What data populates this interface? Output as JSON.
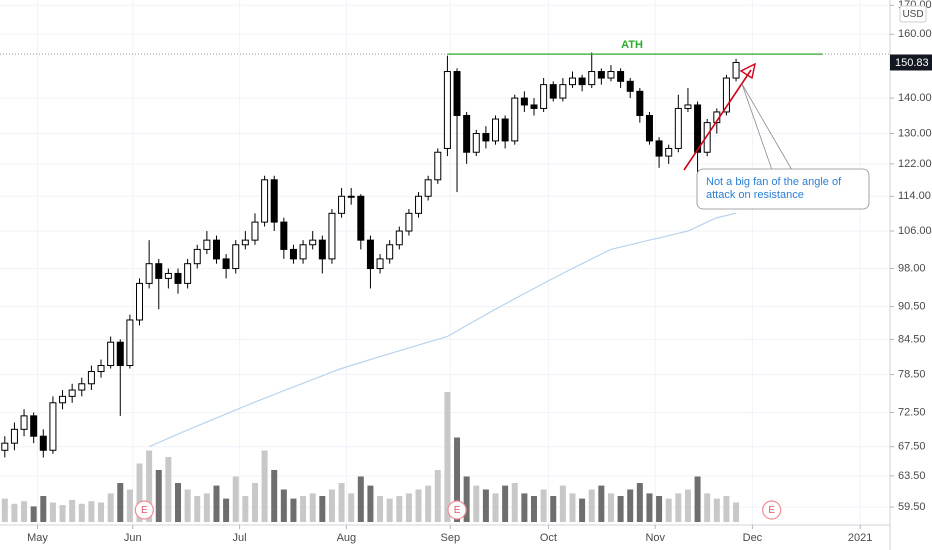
{
  "chart_data": {
    "type": "candlestick",
    "currency": "USD",
    "log": true,
    "grid": true,
    "ylim": [
      57.3,
      171.9
    ],
    "yticks": [
      {
        "value": 59.5,
        "label": "59.50"
      },
      {
        "value": 63.5,
        "label": "63.50"
      },
      {
        "value": 67.5,
        "label": "67.50"
      },
      {
        "value": 72.5,
        "label": "72.50"
      },
      {
        "value": 78.5,
        "label": "78.50"
      },
      {
        "value": 84.5,
        "label": "84.50"
      },
      {
        "value": 90.5,
        "label": "90.50"
      },
      {
        "value": 98,
        "label": "98.00"
      },
      {
        "value": 106,
        "label": "106.00"
      },
      {
        "value": 114,
        "label": "114.00"
      },
      {
        "value": 122,
        "label": "122.00"
      },
      {
        "value": 130,
        "label": "130.00"
      },
      {
        "value": 140,
        "label": "140.00"
      },
      {
        "value": 160,
        "label": "160.00"
      },
      {
        "value": 170,
        "label": "170.00"
      }
    ],
    "xlim": [
      -0.5,
      92
    ],
    "xticks": [
      {
        "value": 3.4,
        "label": "May"
      },
      {
        "value": 13.3,
        "label": "Jun"
      },
      {
        "value": 24.4,
        "label": "Jul"
      },
      {
        "value": 35.5,
        "label": "Aug"
      },
      {
        "value": 46.3,
        "label": "Sep"
      },
      {
        "value": 56.5,
        "label": "Oct"
      },
      {
        "value": 67.6,
        "label": "Nov"
      },
      {
        "value": 77.7,
        "label": "Dec"
      },
      {
        "value": 88.9,
        "label": "2021"
      }
    ],
    "up_color": "#ffffff",
    "down_color": "#000000",
    "candles": [
      [
        67,
        69,
        66,
        68
      ],
      [
        68,
        71,
        67,
        70
      ],
      [
        70,
        73,
        69,
        72
      ],
      [
        72,
        72.5,
        68,
        69
      ],
      [
        69,
        70,
        66,
        67
      ],
      [
        67,
        75,
        66.5,
        74
      ],
      [
        74,
        76,
        73,
        75
      ],
      [
        75,
        77,
        74,
        76
      ],
      [
        76,
        78,
        75,
        77
      ],
      [
        77,
        80,
        76,
        79
      ],
      [
        79,
        81,
        78,
        80
      ],
      [
        80,
        85,
        79.5,
        84
      ],
      [
        84,
        84.5,
        72,
        80
      ],
      [
        80,
        89,
        79.5,
        88
      ],
      [
        88,
        96,
        87,
        95
      ],
      [
        95,
        104,
        94,
        99
      ],
      [
        99,
        100,
        90,
        96
      ],
      [
        96,
        98,
        94,
        97
      ],
      [
        97,
        98,
        93,
        95
      ],
      [
        95,
        100,
        94,
        99
      ],
      [
        99,
        103,
        98,
        102
      ],
      [
        102,
        106,
        101,
        104
      ],
      [
        104,
        105,
        99,
        100
      ],
      [
        100,
        101,
        96,
        98
      ],
      [
        98,
        104,
        97,
        103
      ],
      [
        103,
        106,
        102,
        104
      ],
      [
        104,
        110,
        103,
        108
      ],
      [
        108,
        119,
        107,
        118
      ],
      [
        118,
        119,
        106,
        108
      ],
      [
        108,
        109,
        100,
        102
      ],
      [
        102,
        103,
        99,
        100
      ],
      [
        100,
        104,
        99,
        103
      ],
      [
        103,
        106,
        102,
        104
      ],
      [
        104,
        105,
        97,
        100
      ],
      [
        100,
        111,
        99,
        110
      ],
      [
        110,
        116,
        109,
        114
      ],
      [
        114,
        116,
        112,
        114
      ],
      [
        114,
        114.5,
        102,
        104
      ],
      [
        104,
        105,
        94,
        98
      ],
      [
        98,
        101,
        97,
        100
      ],
      [
        100,
        104,
        99,
        103
      ],
      [
        103,
        107,
        102,
        106
      ],
      [
        106,
        111,
        105,
        110
      ],
      [
        110,
        115,
        109,
        114
      ],
      [
        114,
        119,
        113,
        118
      ],
      [
        118,
        126,
        117,
        125
      ],
      [
        126,
        153,
        124,
        148
      ],
      [
        148,
        149,
        115,
        135
      ],
      [
        135,
        136,
        122,
        125
      ],
      [
        125,
        131,
        124,
        130
      ],
      [
        130,
        132,
        126,
        128
      ],
      [
        128,
        135,
        127,
        134
      ],
      [
        134,
        135,
        126,
        128
      ],
      [
        128,
        141,
        127,
        140
      ],
      [
        140,
        142,
        136,
        138
      ],
      [
        138,
        140,
        135,
        137
      ],
      [
        137,
        146,
        136,
        144
      ],
      [
        144,
        145,
        139,
        140
      ],
      [
        140,
        146,
        139,
        144
      ],
      [
        144,
        148,
        143,
        146
      ],
      [
        146,
        147,
        142,
        144
      ],
      [
        144,
        154,
        143,
        148
      ],
      [
        148,
        149,
        144,
        146
      ],
      [
        146,
        150,
        145,
        148
      ],
      [
        148,
        149,
        143,
        145
      ],
      [
        145,
        146,
        140,
        142
      ],
      [
        142,
        143,
        133,
        135
      ],
      [
        135,
        136,
        127,
        128
      ],
      [
        128,
        129,
        121,
        124
      ],
      [
        124,
        127,
        122,
        126
      ],
      [
        126,
        141,
        125,
        137
      ],
      [
        137,
        143,
        136,
        138
      ],
      [
        138,
        139,
        118,
        125
      ],
      [
        125,
        134,
        124,
        133
      ],
      [
        133,
        137,
        130,
        136
      ],
      [
        136,
        147,
        135,
        146
      ],
      [
        146,
        152,
        145,
        150.83
      ]
    ],
    "volume": [
      18,
      14,
      16,
      12,
      20,
      15,
      13,
      17,
      14,
      16,
      15,
      22,
      30,
      25,
      45,
      55,
      40,
      50,
      30,
      25,
      20,
      22,
      28,
      18,
      35,
      20,
      30,
      55,
      40,
      25,
      18,
      20,
      22,
      20,
      25,
      30,
      22,
      35,
      28,
      20,
      18,
      20,
      22,
      25,
      28,
      40,
      100,
      65,
      35,
      28,
      25,
      22,
      28,
      30,
      22,
      20,
      25,
      20,
      28,
      22,
      18,
      25,
      28,
      22,
      20,
      25,
      30,
      22,
      20,
      18,
      22,
      25,
      35,
      22,
      18,
      20,
      15
    ],
    "volume_up_color": "#c8c8c8",
    "volume_down_color": "#6e6e6e",
    "ma": {
      "color": "#b9d3ec",
      "values": [
        null,
        null,
        null,
        null,
        null,
        null,
        null,
        null,
        null,
        null,
        null,
        null,
        null,
        null,
        null,
        67.5,
        68.1,
        68.7,
        69.3,
        69.9,
        70.5,
        71.1,
        71.7,
        72.3,
        72.9,
        73.5,
        74.1,
        74.7,
        75.3,
        75.9,
        76.5,
        77.1,
        77.7,
        78.3,
        78.9,
        79.5,
        80.0,
        80.5,
        81.0,
        81.5,
        82.0,
        82.5,
        83.0,
        83.5,
        84.0,
        84.5,
        85.0,
        86.0,
        87.0,
        88.0,
        89.0,
        90.0,
        91.0,
        92.0,
        93.0,
        94.0,
        95.0,
        96.0,
        97.0,
        98.0,
        99.0,
        100.0,
        101.0,
        102.0,
        102.5,
        103.0,
        103.5,
        104.0,
        104.5,
        105.0,
        105.5,
        106.0,
        107.0,
        108.0,
        109.0,
        109.5,
        110.0
      ]
    },
    "ath": {
      "label": "ATH",
      "value": 153.5,
      "from": 46,
      "to": 85,
      "color": "#2eaa2e"
    },
    "earnings": {
      "label": "E",
      "x": [
        14.5,
        47,
        79.7
      ]
    },
    "annotation": {
      "lines": [
        "Not a big fan of the angle of",
        "attack on resistance"
      ]
    }
  }
}
